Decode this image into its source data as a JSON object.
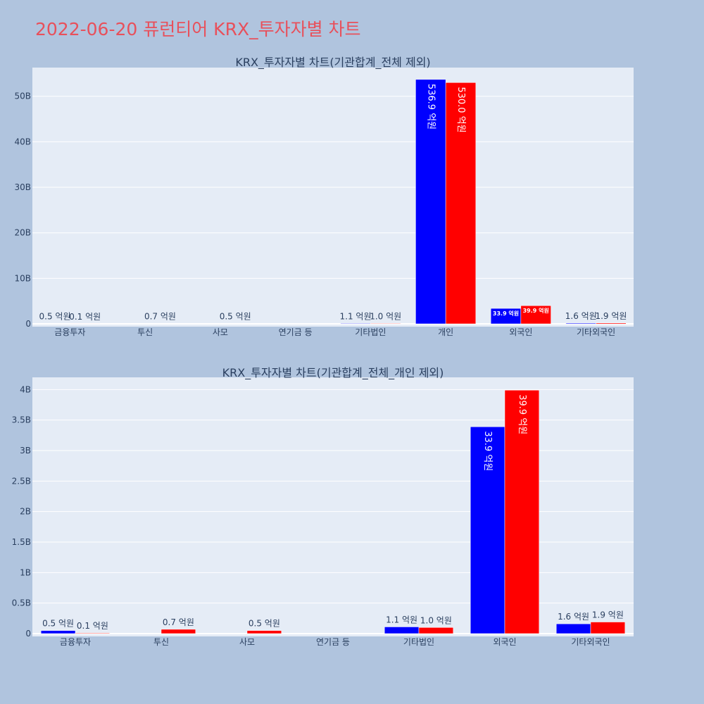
{
  "title": "2022-06-20 퓨런티어 KRX_투자자별 차트",
  "colors": {
    "buy": "#0000ff",
    "sell": "#ff0000",
    "plot_bg": "#e5ecf6",
    "page_bg": "#b0c4de",
    "title": "#e8505b"
  },
  "chart_data": [
    {
      "type": "bar",
      "title": "KRX_투자자별 차트(기관합계_전체 제외)",
      "categories": [
        "금융투자",
        "투신",
        "사모",
        "연기금 등",
        "기타법인",
        "개인",
        "외국인",
        "기타외국인"
      ],
      "series": [
        {
          "color": "#0000ff",
          "values": [
            0.05,
            0,
            0,
            0,
            0.11,
            53.69,
            3.39,
            0.16
          ],
          "labels": [
            "0.5 억원",
            "",
            "",
            "",
            "1.1 억원",
            "536.9 억원",
            "33.9 억원",
            "1.6 억원"
          ]
        },
        {
          "color": "#ff0000",
          "values": [
            0.01,
            0.07,
            0.05,
            0,
            0.1,
            53.0,
            3.99,
            0.19
          ],
          "labels": [
            "0.1 억원",
            "0.7 억원",
            "0.5 억원",
            "",
            "1.0 억원",
            "530.0 억원",
            "39.9 억원",
            "1.9 억원"
          ]
        }
      ],
      "yticks": [
        0,
        10,
        20,
        30,
        40,
        50
      ],
      "ytick_labels": [
        "0",
        "10B",
        "20B",
        "30B",
        "40B",
        "50B"
      ],
      "ylim": [
        0,
        56.3
      ],
      "ylabel": "",
      "xlabel": "",
      "grid": true,
      "legend": false
    },
    {
      "type": "bar",
      "title": "KRX_투자자별 차트(기관합계_전체_개인 제외)",
      "categories": [
        "금융투자",
        "투신",
        "사모",
        "연기금 등",
        "기타법인",
        "외국인",
        "기타외국인"
      ],
      "series": [
        {
          "color": "#0000ff",
          "values": [
            0.05,
            0,
            0,
            0,
            0.11,
            3.39,
            0.16
          ],
          "labels": [
            "0.5 억원",
            "",
            "",
            "",
            "1.1 억원",
            "33.9 억원",
            "1.6 억원"
          ]
        },
        {
          "color": "#ff0000",
          "values": [
            0.01,
            0.07,
            0.05,
            0,
            0.1,
            3.99,
            0.19
          ],
          "labels": [
            "0.1 억원",
            "0.7 억원",
            "0.5 억원",
            "",
            "1.0 억원",
            "39.9 억원",
            "1.9 억원"
          ]
        }
      ],
      "yticks": [
        0,
        0.5,
        1,
        1.5,
        2,
        2.5,
        3,
        3.5,
        4
      ],
      "ytick_labels": [
        "0",
        "0.5B",
        "1B",
        "1.5B",
        "2B",
        "2.5B",
        "3B",
        "3.5B",
        "4B"
      ],
      "ylim": [
        0,
        4.2
      ],
      "ylabel": "",
      "xlabel": "",
      "grid": true,
      "legend": false
    }
  ]
}
